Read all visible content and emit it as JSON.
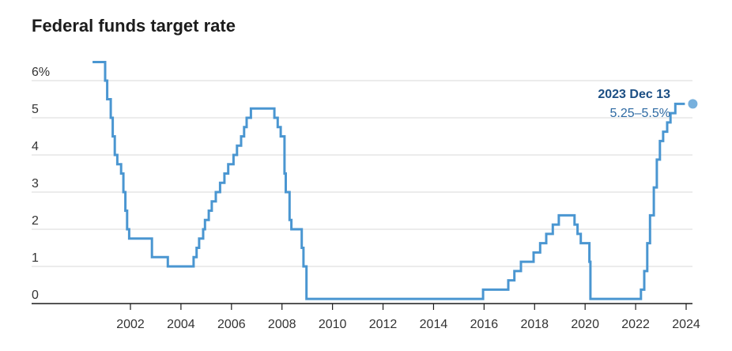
{
  "chart_data": {
    "type": "line",
    "title": "Federal funds target rate",
    "xlabel": "",
    "ylabel": "",
    "xlim": [
      2000.0,
      2024.3
    ],
    "ylim": [
      0,
      6.5
    ],
    "y_ticks": [
      {
        "value": 0,
        "label": "0"
      },
      {
        "value": 1,
        "label": "1"
      },
      {
        "value": 2,
        "label": "2"
      },
      {
        "value": 3,
        "label": "3"
      },
      {
        "value": 4,
        "label": "4"
      },
      {
        "value": 5,
        "label": "5"
      },
      {
        "value": 6,
        "label": "6%"
      }
    ],
    "x_ticks": [
      {
        "value": 2002,
        "label": "2002"
      },
      {
        "value": 2004,
        "label": "2004"
      },
      {
        "value": 2006,
        "label": "2006"
      },
      {
        "value": 2008,
        "label": "2008"
      },
      {
        "value": 2010,
        "label": "2010"
      },
      {
        "value": 2012,
        "label": "2012"
      },
      {
        "value": 2014,
        "label": "2014"
      },
      {
        "value": 2016,
        "label": "2016"
      },
      {
        "value": 2018,
        "label": "2018"
      },
      {
        "value": 2020,
        "label": "2020"
      },
      {
        "value": 2022,
        "label": "2022"
      },
      {
        "value": 2024,
        "label": "2024"
      }
    ],
    "grid": true,
    "series": [
      {
        "color": "#4a96d1",
        "step": true,
        "points": [
          [
            2000.5,
            6.5
          ],
          [
            2001.0,
            6.0
          ],
          [
            2001.08,
            5.5
          ],
          [
            2001.22,
            5.0
          ],
          [
            2001.3,
            4.5
          ],
          [
            2001.38,
            4.0
          ],
          [
            2001.48,
            3.75
          ],
          [
            2001.63,
            3.5
          ],
          [
            2001.72,
            3.0
          ],
          [
            2001.8,
            2.5
          ],
          [
            2001.87,
            2.0
          ],
          [
            2001.95,
            1.75
          ],
          [
            2002.85,
            1.25
          ],
          [
            2003.48,
            1.0
          ],
          [
            2004.5,
            1.25
          ],
          [
            2004.62,
            1.5
          ],
          [
            2004.72,
            1.75
          ],
          [
            2004.88,
            2.0
          ],
          [
            2004.95,
            2.25
          ],
          [
            2005.1,
            2.5
          ],
          [
            2005.22,
            2.75
          ],
          [
            2005.38,
            3.0
          ],
          [
            2005.55,
            3.25
          ],
          [
            2005.72,
            3.5
          ],
          [
            2005.87,
            3.75
          ],
          [
            2006.08,
            4.0
          ],
          [
            2006.22,
            4.25
          ],
          [
            2006.38,
            4.5
          ],
          [
            2006.5,
            4.75
          ],
          [
            2006.6,
            5.0
          ],
          [
            2006.77,
            5.25
          ],
          [
            2007.7,
            5.0
          ],
          [
            2007.83,
            4.75
          ],
          [
            2007.95,
            4.5
          ],
          [
            2008.1,
            3.5
          ],
          [
            2008.15,
            3.0
          ],
          [
            2008.3,
            2.25
          ],
          [
            2008.37,
            2.0
          ],
          [
            2008.78,
            1.5
          ],
          [
            2008.85,
            1.0
          ],
          [
            2008.97,
            0.125
          ],
          [
            2015.96,
            0.375
          ],
          [
            2016.96,
            0.625
          ],
          [
            2017.2,
            0.875
          ],
          [
            2017.46,
            1.125
          ],
          [
            2017.96,
            1.375
          ],
          [
            2018.22,
            1.625
          ],
          [
            2018.46,
            1.875
          ],
          [
            2018.72,
            2.125
          ],
          [
            2018.96,
            2.375
          ],
          [
            2019.58,
            2.125
          ],
          [
            2019.7,
            1.875
          ],
          [
            2019.83,
            1.625
          ],
          [
            2020.17,
            1.125
          ],
          [
            2020.21,
            0.125
          ],
          [
            2022.21,
            0.375
          ],
          [
            2022.34,
            0.875
          ],
          [
            2022.46,
            1.625
          ],
          [
            2022.57,
            2.375
          ],
          [
            2022.72,
            3.125
          ],
          [
            2022.84,
            3.875
          ],
          [
            2022.96,
            4.375
          ],
          [
            2023.09,
            4.625
          ],
          [
            2023.25,
            4.875
          ],
          [
            2023.38,
            5.125
          ],
          [
            2023.57,
            5.375
          ],
          [
            2023.95,
            5.375
          ]
        ]
      }
    ],
    "annotation": {
      "date": "2023 Dec 13",
      "value": "5.25–5.5%",
      "x": 2023.95,
      "y": 5.375,
      "color_text": "#1c4f84",
      "color_value": "#2e6aa3",
      "dot_color": "#4a96d1"
    },
    "colors": {
      "gridline": "#d9d9d9",
      "axis": "#1c1c1c",
      "tick_text": "#333333"
    }
  }
}
